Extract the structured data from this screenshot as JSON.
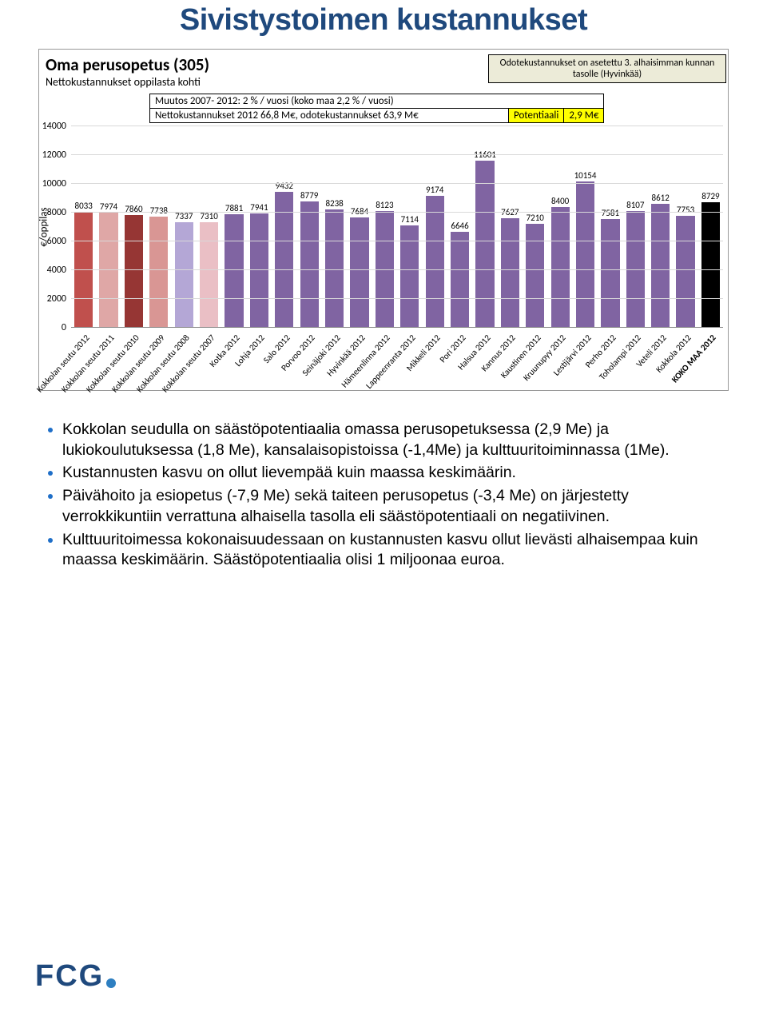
{
  "title": "Sivistystoimen kustannukset",
  "chart": {
    "heading": "Oma perusopetus (305)",
    "subheading": "Nettokustannukset  oppilasta kohti",
    "note_box": {
      "text": "Odotekustannukset on asetettu 3. alhaisimman kunnan tasolle (Hyvinkää)",
      "bg": "#ecebd8"
    },
    "info_rows": [
      "Muutos 2007- 2012: 2 % / vuosi (koko maa 2,2 % / vuosi)",
      "Nettokustannukset 2012 66,8 M€, odotekustannukset 63,9 M€"
    ],
    "potential": {
      "label": "Potentiaali",
      "value": "2,9 M€",
      "bg": "#ffff00"
    },
    "yaxis_label": "€/oppilas",
    "ymax": 14000,
    "ytick_step": 2000,
    "grid_color": "#d9d9d9",
    "bg": "#ffffff",
    "categories": [
      "Kokkolan seutu 2012",
      "Kokkolan seutu 2011",
      "Kokkolan seutu 2010",
      "Kokkolan seutu 2009",
      "Kokkolan seutu 2008",
      "Kokkolan seutu 2007",
      "Kotka 2012",
      "Lohja 2012",
      "Salo 2012",
      "Porvoo 2012",
      "Seinäjoki 2012",
      "Hyvinkää 2012",
      "Hämeenlinna 2012",
      "Lappeenranta 2012",
      "Mikkeli 2012",
      "Pori 2012",
      "Halsua 2012",
      "Kannus 2012",
      "Kaustinen 2012",
      "Kruunupyy 2012",
      "Lestijärvi 2012",
      "Perho 2012",
      "Toholampi 2012",
      "Veteli 2012",
      "Kokkola 2012",
      "KOKO MAA 2012"
    ],
    "values": [
      8033,
      7974,
      7860,
      7738,
      7337,
      7310,
      7881,
      7941,
      9432,
      8779,
      8238,
      7684,
      8123,
      7114,
      9174,
      6646,
      11601,
      7627,
      7210,
      8400,
      10154,
      7581,
      8107,
      8612,
      7753,
      8729
    ],
    "bar_colors": [
      "#c0504d",
      "#dfa7a6",
      "#963634",
      "#d99694",
      "#b4a7d6",
      "#eabfc5",
      "#8064a2",
      "#8064a2",
      "#8064a2",
      "#8064a2",
      "#8064a2",
      "#8064a2",
      "#8064a2",
      "#8064a2",
      "#8064a2",
      "#8064a2",
      "#8064a2",
      "#8064a2",
      "#8064a2",
      "#8064a2",
      "#8064a2",
      "#8064a2",
      "#8064a2",
      "#8064a2",
      "#8064a2",
      "#000000"
    ],
    "label_fontsize": 11
  },
  "bullets": [
    "Kokkolan seudulla on säästöpotentiaalia omassa perusopetuksessa (2,9 Me) ja lukiokoulutuksessa (1,8 Me), kansalaisopistoissa (-1,4Me) ja kulttuuritoiminnassa (1Me).",
    "Kustannusten kasvu on ollut lievempää kuin maassa keskimäärin.",
    "Päivähoito ja esiopetus (-7,9 Me) sekä taiteen perusopetus (-3,4 Me) on järjestetty verrokkikuntiin verrattuna alhaisella tasolla eli säästöpotentiaali on negatiivinen.",
    "Kulttuuritoimessa kokonaisuudessaan on kustannusten kasvu ollut lievästi alhaisempaa kuin maassa keskimäärin. Säästöpotentiaalia olisi 1 miljoonaa euroa."
  ],
  "logo": {
    "text": "FCG",
    "color": "#1f497d",
    "dot_color": "#2e7fc1"
  }
}
